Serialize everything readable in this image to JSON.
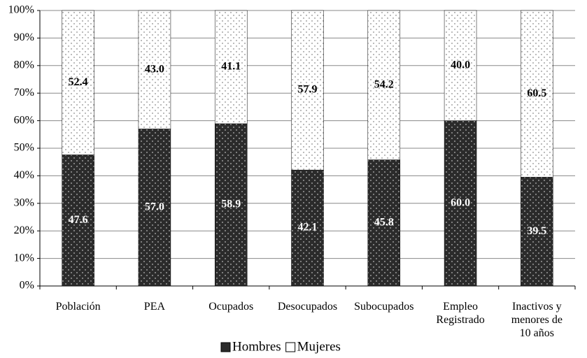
{
  "chart_data": {
    "type": "stacked-bar-100",
    "categories": [
      "Población",
      "PEA",
      "Ocupados",
      "Desocupados",
      "Subocupados",
      "Empleo Registrado",
      "Inactivos y menores de 10 años"
    ],
    "series": [
      {
        "name": "Hombres",
        "color": "#2b2b2b",
        "values": [
          47.6,
          57.0,
          58.9,
          42.1,
          45.8,
          60.0,
          39.5
        ],
        "value_labels": [
          "47.6",
          "57.0",
          "58.9",
          "42.1",
          "45.8",
          "60.0",
          "39.5"
        ]
      },
      {
        "name": "Mujeres",
        "color": "#ffffff",
        "values": [
          52.4,
          43.0,
          41.1,
          57.9,
          54.2,
          40.0,
          60.5
        ],
        "value_labels": [
          "52.4",
          "43.0",
          "41.1",
          "57.9",
          "54.2",
          "40.0",
          "60.5"
        ]
      }
    ],
    "ylim": [
      0,
      100
    ],
    "yticks": [
      {
        "value": 0,
        "label": "0%"
      },
      {
        "value": 10,
        "label": "10%"
      },
      {
        "value": 20,
        "label": "20%"
      },
      {
        "value": 30,
        "label": "30%"
      },
      {
        "value": 40,
        "label": "40%"
      },
      {
        "value": 50,
        "label": "50%"
      },
      {
        "value": 60,
        "label": "60%"
      },
      {
        "value": 70,
        "label": "70%"
      },
      {
        "value": 80,
        "label": "80%"
      },
      {
        "value": 90,
        "label": "90%"
      },
      {
        "value": 100,
        "label": "100%"
      }
    ],
    "grid": true,
    "legend": "bottom"
  }
}
